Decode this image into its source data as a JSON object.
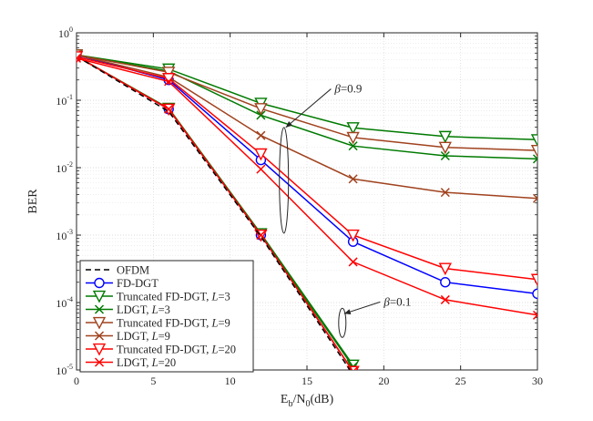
{
  "chart_data": {
    "type": "line",
    "title": "",
    "xlabel_main": "E",
    "xlabel_sub1": "b",
    "xlabel_mid": "/N",
    "xlabel_sub2": "0",
    "xlabel_tail": "(dB)",
    "ylabel": "BER",
    "xlim": [
      0,
      30
    ],
    "ylim": [
      1e-05,
      1
    ],
    "yscale": "log",
    "grid": true,
    "x_ticks": [
      0,
      5,
      10,
      15,
      20,
      25,
      30
    ],
    "x_tick_labels": [
      "0",
      "5",
      "10",
      "15",
      "20",
      "25",
      "30"
    ],
    "y_ticks": [
      {
        "value": 1,
        "base": "10",
        "exp": "0"
      },
      {
        "value": 0.1,
        "base": "10",
        "exp": "-1"
      },
      {
        "value": 0.01,
        "base": "10",
        "exp": "-2"
      },
      {
        "value": 0.001,
        "base": "10",
        "exp": "-3"
      },
      {
        "value": 0.0001,
        "base": "10",
        "exp": "-4"
      },
      {
        "value": 1e-05,
        "base": "10",
        "exp": "-5"
      }
    ],
    "series": [
      {
        "name": "OFDM",
        "legend_main": "OFDM",
        "legend_param": "",
        "legend_tail": "",
        "color": "#000000",
        "dash": "6,4",
        "marker": "none",
        "x": [
          0,
          6,
          12,
          18
        ],
        "y": [
          0.45,
          0.068,
          0.00095,
          8.5e-06
        ]
      },
      {
        "name": "FD-DGT",
        "legend_main": "FD-DGT",
        "legend_param": "",
        "legend_tail": "",
        "color": "#0000ff",
        "dash": "",
        "marker": "circle",
        "x": [
          0,
          6,
          12,
          18,
          24,
          30
        ],
        "y": [
          0.47,
          0.2,
          0.013,
          0.0008,
          0.0002,
          0.000135
        ]
      },
      {
        "name": "Truncated FD-DGT, L=3",
        "legend_main": "Truncated FD-DGT, ",
        "legend_param": "L",
        "legend_tail": "=3",
        "color": "#007a00",
        "dash": "",
        "marker": "triangle",
        "x": [
          0,
          6,
          12,
          18,
          24,
          30
        ],
        "y": [
          0.47,
          0.29,
          0.09,
          0.039,
          0.029,
          0.026
        ]
      },
      {
        "name": "LDGT, L=3",
        "legend_main": "LDGT, ",
        "legend_param": "L",
        "legend_tail": "=3",
        "color": "#007a00",
        "dash": "",
        "marker": "x",
        "x": [
          0,
          6,
          12,
          18,
          24,
          30
        ],
        "y": [
          0.47,
          0.27,
          0.06,
          0.021,
          0.015,
          0.0135
        ]
      },
      {
        "name": "Truncated FD-DGT, L=9",
        "legend_main": "Truncated FD-DGT, ",
        "legend_param": "L",
        "legend_tail": "=9",
        "color": "#a0421e",
        "dash": "",
        "marker": "triangle",
        "x": [
          0,
          6,
          12,
          18,
          24,
          30
        ],
        "y": [
          0.47,
          0.26,
          0.075,
          0.028,
          0.02,
          0.018
        ]
      },
      {
        "name": "LDGT, L=9",
        "legend_main": "LDGT, ",
        "legend_param": "L",
        "legend_tail": "=9",
        "color": "#a0421e",
        "dash": "",
        "marker": "x",
        "x": [
          0,
          6,
          12,
          18,
          24,
          30
        ],
        "y": [
          0.47,
          0.22,
          0.03,
          0.0068,
          0.0043,
          0.0035
        ]
      },
      {
        "name": "Truncated FD-DGT, L=20",
        "legend_main": "Truncated FD-DGT, ",
        "legend_param": "L",
        "legend_tail": "=20",
        "color": "#ff0000",
        "dash": "",
        "marker": "triangle",
        "x": [
          0,
          6,
          12,
          18,
          24,
          30
        ],
        "y": [
          0.44,
          0.21,
          0.016,
          0.001,
          0.00032,
          0.00022
        ]
      },
      {
        "name": "LDGT, L=20",
        "legend_main": "LDGT, ",
        "legend_param": "L",
        "legend_tail": "=20",
        "color": "#ff0000",
        "dash": "",
        "marker": "x",
        "x": [
          0,
          6,
          12,
          18,
          24,
          30
        ],
        "y": [
          0.42,
          0.19,
          0.0095,
          0.0004,
          0.00011,
          6.5e-05
        ]
      },
      {
        "name": "FD-DGT (beta=0.1)",
        "legend_main": "",
        "legend_param": "",
        "legend_tail": "",
        "color": "#0000ff",
        "dash": "",
        "marker": "circle",
        "in_legend": false,
        "x": [
          0,
          6,
          12,
          18
        ],
        "y": [
          0.45,
          0.074,
          0.001,
          9.5e-06
        ]
      },
      {
        "name": "Truncated FD-DGT L=3 (beta=0.1)",
        "legend_main": "",
        "legend_param": "",
        "legend_tail": "",
        "color": "#007a00",
        "dash": "",
        "marker": "triangle",
        "in_legend": false,
        "x": [
          0,
          6,
          12,
          18
        ],
        "y": [
          0.45,
          0.076,
          0.00105,
          1.18e-05
        ]
      },
      {
        "name": "LDGT L=3 (beta=0.1)",
        "legend_main": "",
        "legend_param": "",
        "legend_tail": "",
        "color": "#007a00",
        "dash": "",
        "marker": "x",
        "in_legend": false,
        "x": [
          0,
          6,
          12,
          18
        ],
        "y": [
          0.45,
          0.075,
          0.001,
          1.12e-05
        ]
      },
      {
        "name": "Truncated FD-DGT L=20 (beta=0.1)",
        "legend_main": "",
        "legend_param": "",
        "legend_tail": "",
        "color": "#ff0000",
        "dash": "",
        "marker": "triangle",
        "in_legend": false,
        "x": [
          0,
          6,
          12,
          18
        ],
        "y": [
          0.45,
          0.074,
          0.001,
          9.5e-06
        ]
      },
      {
        "name": "LDGT L=20 (beta=0.1)",
        "legend_main": "",
        "legend_param": "",
        "legend_tail": "",
        "color": "#ff0000",
        "dash": "",
        "marker": "x",
        "in_legend": false,
        "x": [
          0,
          6,
          12,
          18
        ],
        "y": [
          0.45,
          0.074,
          0.001,
          9.5e-06
        ]
      }
    ],
    "annotations": [
      {
        "symbol": "β",
        "text": "=0.9",
        "ellipse_at": {
          "x": 13.5,
          "y": 0.0065
        },
        "label_at": {
          "x": 16.8,
          "y": 0.13
        }
      },
      {
        "symbol": "β",
        "text": "=0.1",
        "ellipse_at": {
          "x": 17.3,
          "y": 5e-05
        },
        "label_at": {
          "x": 20.0,
          "y": 9e-05
        }
      }
    ],
    "legend_position": "bottom-left"
  }
}
